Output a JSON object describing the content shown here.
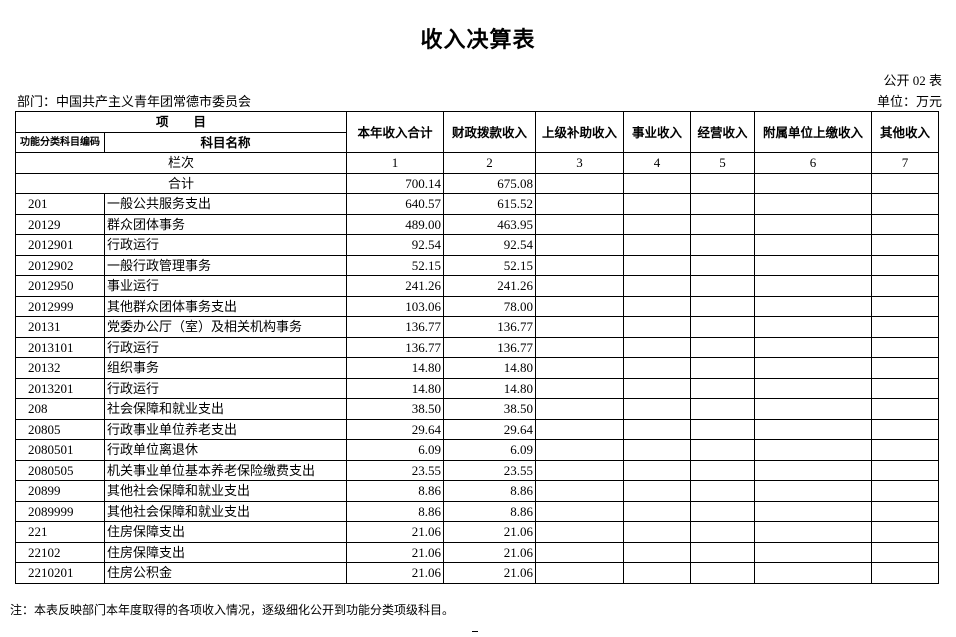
{
  "title": "收入决算表",
  "form_no": "公开 02 表",
  "unit": "单位：万元",
  "department": "部门：中国共产主义青年团常德市委员会",
  "header": {
    "item": "项　　目",
    "code": "功能分类科目编码",
    "name": "科目名称",
    "columns": [
      "本年收入合计",
      "财政拨款收入",
      "上级补助收入",
      "事业收入",
      "经营收入",
      "附属单位上缴收入",
      "其他收入"
    ],
    "row_index_label": "栏次",
    "row_index": [
      "1",
      "2",
      "3",
      "4",
      "5",
      "6",
      "7"
    ]
  },
  "total": {
    "label": "合计",
    "values": [
      "700.14",
      "675.08",
      "",
      "",
      "",
      "",
      ""
    ]
  },
  "rows": [
    {
      "code": "201",
      "name": "一般公共服务支出",
      "values": [
        "640.57",
        "615.52",
        "",
        "",
        "",
        "",
        ""
      ]
    },
    {
      "code": "20129",
      "name": "群众团体事务",
      "values": [
        "489.00",
        "463.95",
        "",
        "",
        "",
        "",
        ""
      ]
    },
    {
      "code": "2012901",
      "name": "行政运行",
      "values": [
        "92.54",
        "92.54",
        "",
        "",
        "",
        "",
        ""
      ]
    },
    {
      "code": "2012902",
      "name": "一般行政管理事务",
      "values": [
        "52.15",
        "52.15",
        "",
        "",
        "",
        "",
        ""
      ]
    },
    {
      "code": "2012950",
      "name": "事业运行",
      "values": [
        "241.26",
        "241.26",
        "",
        "",
        "",
        "",
        ""
      ]
    },
    {
      "code": "2012999",
      "name": "其他群众团体事务支出",
      "values": [
        "103.06",
        "78.00",
        "",
        "",
        "",
        "",
        ""
      ]
    },
    {
      "code": "20131",
      "name": "党委办公厅（室）及相关机构事务",
      "values": [
        "136.77",
        "136.77",
        "",
        "",
        "",
        "",
        ""
      ]
    },
    {
      "code": "2013101",
      "name": "行政运行",
      "values": [
        "136.77",
        "136.77",
        "",
        "",
        "",
        "",
        ""
      ]
    },
    {
      "code": "20132",
      "name": "组织事务",
      "values": [
        "14.80",
        "14.80",
        "",
        "",
        "",
        "",
        ""
      ]
    },
    {
      "code": "2013201",
      "name": "行政运行",
      "values": [
        "14.80",
        "14.80",
        "",
        "",
        "",
        "",
        ""
      ]
    },
    {
      "code": "208",
      "name": "社会保障和就业支出",
      "values": [
        "38.50",
        "38.50",
        "",
        "",
        "",
        "",
        ""
      ]
    },
    {
      "code": "20805",
      "name": "行政事业单位养老支出",
      "values": [
        "29.64",
        "29.64",
        "",
        "",
        "",
        "",
        ""
      ]
    },
    {
      "code": "2080501",
      "name": "行政单位离退休",
      "values": [
        "6.09",
        "6.09",
        "",
        "",
        "",
        "",
        ""
      ]
    },
    {
      "code": "2080505",
      "name": "机关事业单位基本养老保险缴费支出",
      "values": [
        "23.55",
        "23.55",
        "",
        "",
        "",
        "",
        ""
      ]
    },
    {
      "code": "20899",
      "name": "其他社会保障和就业支出",
      "values": [
        "8.86",
        "8.86",
        "",
        "",
        "",
        "",
        ""
      ]
    },
    {
      "code": "2089999",
      "name": "其他社会保障和就业支出",
      "values": [
        "8.86",
        "8.86",
        "",
        "",
        "",
        "",
        ""
      ]
    },
    {
      "code": "221",
      "name": "住房保障支出",
      "values": [
        "21.06",
        "21.06",
        "",
        "",
        "",
        "",
        ""
      ]
    },
    {
      "code": "22102",
      "name": "住房保障支出",
      "values": [
        "21.06",
        "21.06",
        "",
        "",
        "",
        "",
        ""
      ]
    },
    {
      "code": "2210201",
      "name": "住房公积金",
      "values": [
        "21.06",
        "21.06",
        "",
        "",
        "",
        "",
        ""
      ]
    }
  ],
  "note": "注：本表反映部门本年度取得的各项收入情况，逐级细化公开到功能分类项级科目。"
}
